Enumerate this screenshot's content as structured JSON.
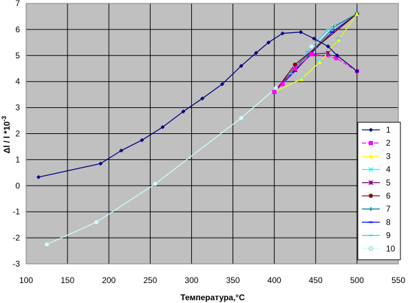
{
  "chart_data": {
    "type": "line",
    "title": "",
    "xlabel": "Температура,°С",
    "ylabel": "Δl / l *10",
    "ylabel_exponent": "-3",
    "xlim": [
      100,
      550
    ],
    "ylim": [
      -3,
      7
    ],
    "x_ticks": [
      100,
      150,
      200,
      250,
      300,
      350,
      400,
      450,
      500,
      550
    ],
    "y_ticks": [
      -3,
      -2,
      -1,
      0,
      1,
      2,
      3,
      4,
      5,
      6,
      7
    ],
    "grid": true,
    "plot_background": "#c0c0c0",
    "legend_position": "right",
    "series": [
      {
        "name": "1",
        "color": "#000080",
        "marker": "diamond",
        "dashed": false,
        "x": [
          115,
          190,
          215,
          240,
          265,
          290,
          313,
          337,
          360,
          378,
          393,
          410,
          432,
          448,
          465,
          476,
          500
        ],
        "y": [
          0.33,
          0.85,
          1.35,
          1.75,
          2.25,
          2.85,
          3.35,
          3.9,
          4.6,
          5.1,
          5.5,
          5.85,
          5.9,
          5.65,
          5.35,
          5.0,
          4.4
        ]
      },
      {
        "name": "2",
        "color": "#ff00ff",
        "marker": "square",
        "dashed": true,
        "x": [
          400,
          410,
          425,
          445,
          475,
          500
        ],
        "y": [
          3.6,
          3.9,
          4.5,
          5.05,
          4.9,
          4.4
        ]
      },
      {
        "name": "3",
        "color": "#ffff00",
        "marker": "triangle",
        "dashed": false,
        "x": [
          400,
          433,
          455,
          478,
          500
        ],
        "y": [
          3.6,
          4.1,
          4.75,
          5.6,
          6.6
        ]
      },
      {
        "name": "4",
        "color": "#00ffff",
        "marker": "x",
        "dashed": false,
        "x": [
          400,
          433,
          455,
          478,
          500
        ],
        "y": [
          3.6,
          4.1,
          4.75,
          5.6,
          6.6
        ]
      },
      {
        "name": "5",
        "color": "#800080",
        "marker": "star",
        "dashed": false,
        "x": [
          400,
          425,
          445,
          465,
          478,
          500
        ],
        "y": [
          3.6,
          4.45,
          5.05,
          5.1,
          5.6,
          6.6
        ]
      },
      {
        "name": "6",
        "color": "#800000",
        "marker": "circle",
        "dashed": false,
        "x": [
          400,
          425,
          500
        ],
        "y": [
          3.6,
          4.65,
          6.6
        ]
      },
      {
        "name": "7",
        "color": "#008080",
        "marker": "plus",
        "dashed": false,
        "x": [
          400,
          425,
          450,
          472,
          500
        ],
        "y": [
          3.6,
          4.55,
          5.3,
          6.1,
          6.6
        ]
      },
      {
        "name": "8",
        "color": "#0000ff",
        "marker": "dash",
        "dashed": false,
        "x": [
          400,
          425,
          445,
          470,
          500
        ],
        "y": [
          3.6,
          4.4,
          5.1,
          5.9,
          6.6
        ]
      },
      {
        "name": "9",
        "color": "#33ccff",
        "marker": "dash",
        "dashed": false,
        "x": [
          400,
          420,
          440,
          465,
          500
        ],
        "y": [
          3.6,
          4.3,
          5.15,
          6.0,
          6.6
        ]
      },
      {
        "name": "10",
        "color": "#ccffff",
        "marker": "circle",
        "dashed": false,
        "x": [
          125,
          185,
          256,
          360,
          402,
          425,
          445,
          472,
          500
        ],
        "y": [
          -2.25,
          -1.4,
          0.07,
          2.6,
          3.75,
          4.55,
          5.35,
          6.1,
          6.6
        ]
      }
    ]
  }
}
